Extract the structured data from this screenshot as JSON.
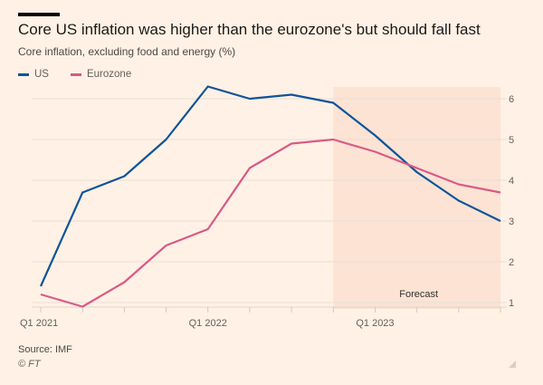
{
  "header": {
    "title": "Core US inflation was higher than the eurozone's but should fall fast",
    "subtitle": "Core inflation, excluding food and energy (%)"
  },
  "footer": {
    "source": "Source: IMF",
    "copyright": "© FT"
  },
  "chart_data": {
    "type": "line",
    "title": "Core US inflation was higher than the eurozone's but should fall fast",
    "subtitle": "Core inflation, excluding food and energy (%)",
    "xlabel": "",
    "ylabel": "",
    "x": [
      "Q1 2021",
      "Q2 2021",
      "Q3 2021",
      "Q4 2021",
      "Q1 2022",
      "Q2 2022",
      "Q3 2022",
      "Q4 2022",
      "Q1 2023",
      "Q2 2023",
      "Q3 2023",
      "Q4 2023"
    ],
    "x_tick_labels": [
      {
        "index": 0,
        "label": "Q1 2021"
      },
      {
        "index": 4,
        "label": "Q1 2022"
      },
      {
        "index": 8,
        "label": "Q1 2023"
      }
    ],
    "y_ticks": [
      1,
      2,
      3,
      4,
      5,
      6
    ],
    "ylim": [
      0.9,
      6.3
    ],
    "y_axis_side": "right",
    "grid": true,
    "legend_position": "top-left",
    "series": [
      {
        "name": "US",
        "color": "#0f5499",
        "values": [
          1.4,
          3.7,
          4.1,
          5.0,
          6.3,
          6.0,
          6.1,
          5.9,
          5.1,
          4.2,
          3.5,
          3.0
        ]
      },
      {
        "name": "Eurozone",
        "color": "#d85a86",
        "values": [
          1.2,
          0.9,
          1.5,
          2.4,
          2.8,
          4.3,
          4.9,
          5.0,
          4.7,
          4.3,
          3.9,
          3.7
        ]
      }
    ],
    "annotations": [
      {
        "type": "shaded-region",
        "label": "Forecast",
        "from": "Q4 2022",
        "to": "Q4 2023",
        "color": "#fce3d4"
      }
    ]
  }
}
